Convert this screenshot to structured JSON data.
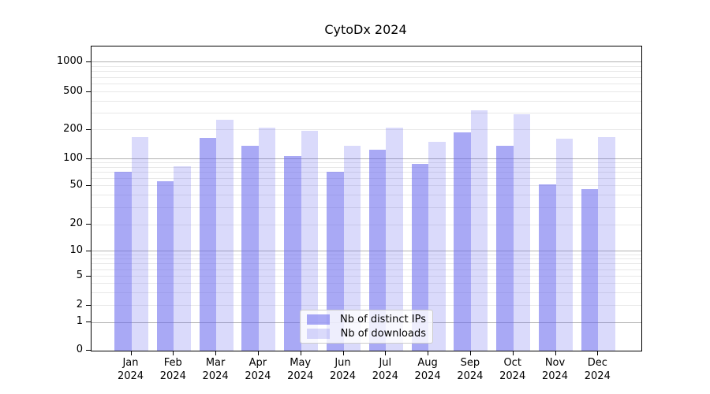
{
  "title": "CytoDx 2024",
  "chart_data": {
    "type": "bar",
    "title": "CytoDx 2024",
    "categories": [
      "Jan 2024",
      "Feb 2024",
      "Mar 2024",
      "Apr 2024",
      "May 2024",
      "Jun 2024",
      "Jul 2024",
      "Aug 2024",
      "Sep 2024",
      "Oct 2024",
      "Nov 2024",
      "Dec 2024"
    ],
    "series": [
      {
        "name": "Nb of distinct IPs",
        "values": [
          72,
          56,
          165,
          135,
          107,
          71,
          124,
          87,
          186,
          137,
          52,
          46
        ]
      },
      {
        "name": "Nb of downloads",
        "values": [
          167,
          82,
          255,
          210,
          196,
          136,
          208,
          150,
          320,
          290,
          161,
          167
        ]
      }
    ],
    "xlabel": "",
    "ylabel": "",
    "yscale": "symlog",
    "ylim": [
      0,
      1500
    ],
    "y_ticks": [
      0,
      1,
      2,
      5,
      10,
      20,
      50,
      100,
      200,
      500,
      1000
    ],
    "grid": true,
    "legend_position": "lower center"
  },
  "legend": {
    "items": [
      {
        "label": "Nb of distinct IPs",
        "series": "ips"
      },
      {
        "label": "Nb of downloads",
        "series": "downloads"
      }
    ]
  },
  "colors": {
    "bar_base": "#6666ee",
    "bar_ips_alpha": 0.56,
    "bar_downloads_alpha": 0.24,
    "grid_major": "#b2b2b2",
    "grid_minor": "#e8e8e8",
    "spine": "#000000",
    "text": "#000000",
    "legend_border": "#cccccc"
  }
}
